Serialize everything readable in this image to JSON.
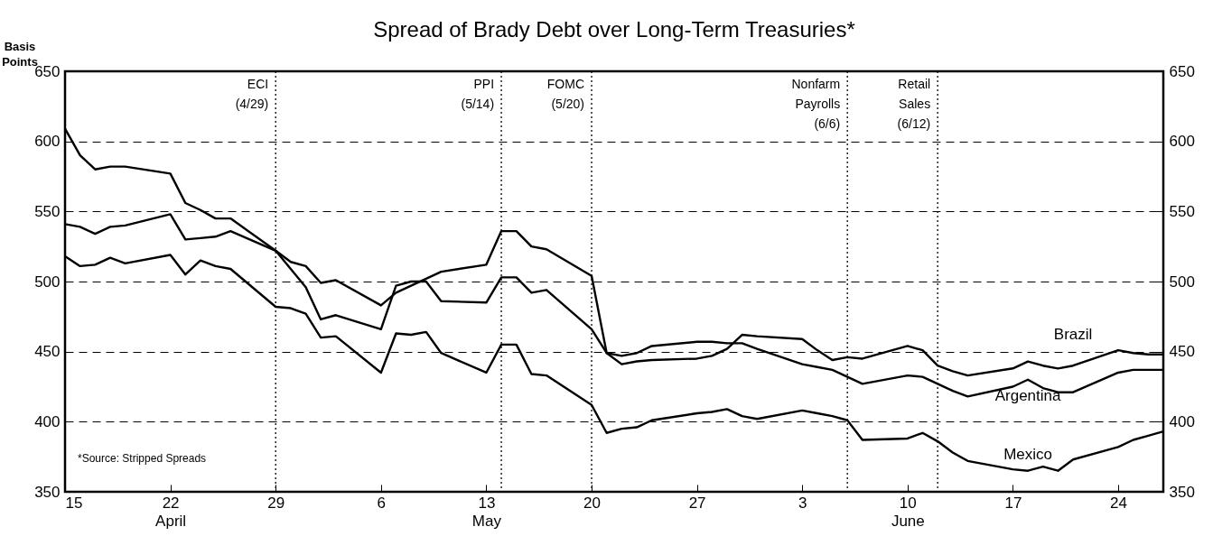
{
  "chart_data": {
    "type": "line",
    "title": "Spread of Brady Debt over Long-Term Treasuries*",
    "ylabel": "Basis Points",
    "x": [
      "--04-15",
      "--04-16",
      "--04-17",
      "--04-18",
      "--04-19",
      "--04-22",
      "--04-23",
      "--04-24",
      "--04-25",
      "--04-26",
      "--04-29",
      "--04-30",
      "--05-01",
      "--05-02",
      "--05-03",
      "--05-06",
      "--05-07",
      "--05-08",
      "--05-09",
      "--05-10",
      "--05-13",
      "--05-14",
      "--05-15",
      "--05-16",
      "--05-17",
      "--05-20",
      "--05-21",
      "--05-22",
      "--05-23",
      "--05-24",
      "--05-27",
      "--05-28",
      "--05-29",
      "--05-30",
      "--05-31",
      "--06-03",
      "--06-04",
      "--06-05",
      "--06-06",
      "--06-07",
      "--06-10",
      "--06-11",
      "--06-12",
      "--06-13",
      "--06-14",
      "--06-17",
      "--06-18",
      "--06-19",
      "--06-20",
      "--06-21",
      "--06-24",
      "--06-25",
      "--06-26",
      "--06-27"
    ],
    "series": [
      {
        "name": "Argentina",
        "color": "#000000",
        "values": [
          609,
          590,
          580,
          582,
          582,
          577,
          556,
          551,
          545,
          545,
          522,
          509,
          496,
          473,
          476,
          466,
          497,
          500,
          500,
          486,
          485,
          503,
          503,
          492,
          494,
          466,
          449,
          447,
          449,
          454,
          457,
          457,
          456,
          456,
          452,
          441,
          439,
          437,
          432,
          427,
          433,
          432,
          427,
          422,
          418,
          425,
          430,
          424,
          421,
          421,
          435,
          437,
          437,
          437
        ]
      },
      {
        "name": "Brazil",
        "color": "#000000",
        "values": [
          541,
          539,
          534,
          539,
          540,
          548,
          530,
          531,
          532,
          536,
          522,
          514,
          511,
          499,
          501,
          483,
          492,
          497,
          502,
          507,
          512,
          536,
          536,
          525,
          523,
          504,
          449,
          441,
          443,
          444,
          445,
          447,
          452,
          462,
          461,
          459,
          451,
          444,
          446,
          445,
          454,
          451,
          440,
          436,
          433,
          438,
          443,
          440,
          438,
          440,
          451,
          449,
          448,
          448
        ]
      },
      {
        "name": "Mexico",
        "color": "#000000",
        "values": [
          518,
          511,
          512,
          517,
          513,
          519,
          505,
          515,
          511,
          509,
          482,
          481,
          477,
          460,
          461,
          435,
          463,
          462,
          464,
          449,
          435,
          455,
          455,
          434,
          433,
          412,
          392,
          395,
          396,
          401,
          406,
          407,
          409,
          404,
          402,
          408,
          406,
          404,
          401,
          387,
          388,
          392,
          386,
          378,
          372,
          366,
          365,
          368,
          365,
          373,
          382,
          387,
          390,
          393
        ]
      }
    ],
    "xlim": [
      "--04-15",
      "--06-27"
    ],
    "xticks": [
      {
        "value": "--04-15",
        "label": "15"
      },
      {
        "value": "--04-22",
        "label": "22\nApril"
      },
      {
        "value": "--04-29",
        "label": "29"
      },
      {
        "value": "--05-06",
        "label": "6"
      },
      {
        "value": "--05-13",
        "label": "13\nMay"
      },
      {
        "value": "--05-20",
        "label": "20"
      },
      {
        "value": "--05-27",
        "label": "27"
      },
      {
        "value": "--06-03",
        "label": "3"
      },
      {
        "value": "--06-10",
        "label": "10\nJune"
      },
      {
        "value": "--06-17",
        "label": "17"
      },
      {
        "value": "--06-24",
        "label": "24"
      }
    ],
    "ylim": [
      350,
      650
    ],
    "yticks": [
      350,
      400,
      450,
      500,
      550,
      600,
      650
    ],
    "y2lim": [
      350,
      650
    ],
    "y2ticks": [
      350,
      400,
      450,
      500,
      550,
      600,
      650
    ],
    "grid": "y",
    "line_style": "solid",
    "ref_lines": [
      {
        "axis": "x",
        "value": "--04-29",
        "label": "ECI (4/29)",
        "line_style": "dotted"
      },
      {
        "axis": "x",
        "value": "--05-14",
        "label": "PPI (5/14)",
        "line_style": "dotted"
      },
      {
        "axis": "x",
        "value": "--05-20",
        "label": "FOMC (5/20)",
        "line_style": "dotted"
      },
      {
        "axis": "x",
        "value": "--06-06",
        "label": "Nonfarm Payrolls (6/6)",
        "line_style": "dotted"
      },
      {
        "axis": "x",
        "value": "--06-12",
        "label": "Retail Sales (6/12)",
        "line_style": "dotted"
      }
    ],
    "annotations": [
      "*Source: Stripped Spreads"
    ]
  }
}
